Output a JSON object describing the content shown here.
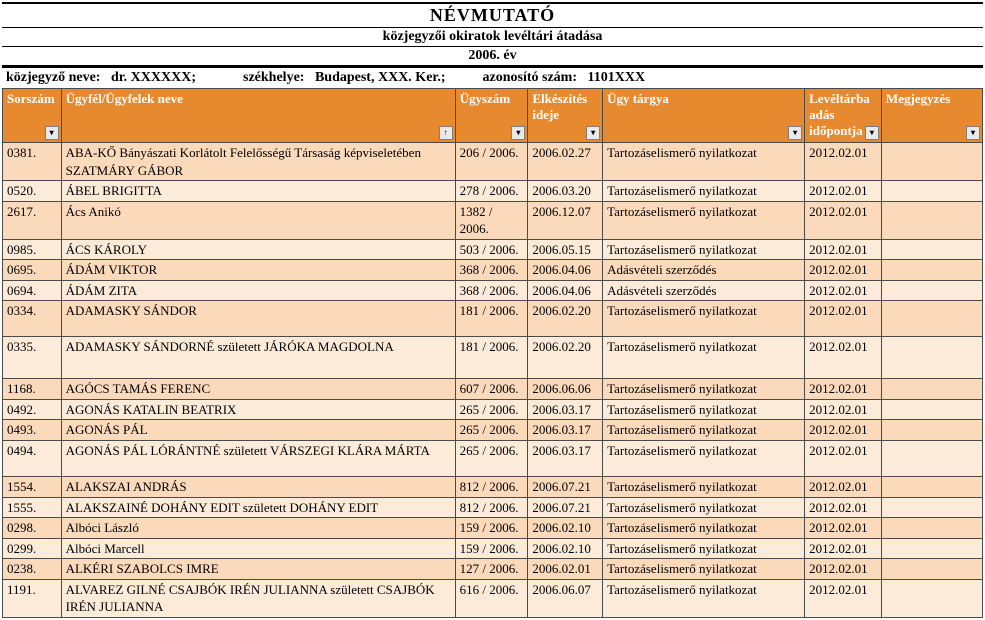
{
  "title": "NÉVMUTATÓ",
  "subtitle": "közjegyzői okiratok levéltári átadása",
  "year": "2006. év",
  "meta": {
    "notary_label": "közjegyző neve:",
    "notary_value": "dr. XXXXXX;",
    "seat_label": "székhelye:",
    "seat_value": "Budapest, XXX. Ker.;",
    "id_label": "azonosító szám:",
    "id_value": "1101XXX"
  },
  "columns": {
    "sorszam": "Sorszám",
    "ugyfel": "Ügyfél/Ügyfelek neve",
    "ugyszam": "Ügyszám",
    "elkeszites": "Elkészítés ideje",
    "targy": "Ügy tárgya",
    "leveltar": "Levéltárba adás időpontja",
    "megjegyzes": "Megjegyzés"
  },
  "rows": [
    {
      "sorszam": "0381.",
      "nev": "ABA-KŐ Bányászati Korlátolt Felelősségű Társaság képviseletében SZATMÁRY GÁBOR",
      "ugy": "206 / 2006.",
      "ido": "2006.02.27",
      "targy": "Tartozáselismerő nyilatkozat",
      "lev": "2012.02.01",
      "megj": ""
    },
    {
      "sorszam": "0520.",
      "nev": "ÁBEL BRIGITTA",
      "ugy": "278 / 2006.",
      "ido": "2006.03.20",
      "targy": "Tartozáselismerő nyilatkozat",
      "lev": "2012.02.01",
      "megj": ""
    },
    {
      "sorszam": "2617.",
      "nev": "Ács Anikó",
      "ugy": "1382 / 2006.",
      "ido": "2006.12.07",
      "targy": "Tartozáselismerő nyilatkozat",
      "lev": "2012.02.01",
      "megj": ""
    },
    {
      "sorszam": "0985.",
      "nev": "ÁCS KÁROLY",
      "ugy": "503 / 2006.",
      "ido": "2006.05.15",
      "targy": "Tartozáselismerő nyilatkozat",
      "lev": "2012.02.01",
      "megj": ""
    },
    {
      "sorszam": "0695.",
      "nev": "ÁDÁM VIKTOR",
      "ugy": "368 / 2006.",
      "ido": "2006.04.06",
      "targy": "Adásvételi szerződés",
      "lev": "2012.02.01",
      "megj": ""
    },
    {
      "sorszam": "0694.",
      "nev": "ÁDÁM ZITA",
      "ugy": "368 / 2006.",
      "ido": "2006.04.06",
      "targy": "Adásvételi szerződés",
      "lev": "2012.02.01",
      "megj": ""
    },
    {
      "sorszam": "0334.",
      "nev": "ADAMASKY SÁNDOR",
      "ugy": "181 / 2006.",
      "ido": "2006.02.20",
      "targy": "Tartozáselismerő nyilatkozat",
      "lev": "2012.02.01",
      "megj": ""
    },
    {
      "sorszam": "0335.",
      "nev": "ADAMASKY SÁNDORNÉ született JÁRÓKA MAGDOLNA",
      "ugy": "181 / 2006.",
      "ido": "2006.02.20",
      "targy": "Tartozáselismerő nyilatkozat",
      "lev": "2012.02.01",
      "megj": ""
    },
    {
      "sorszam": "1168.",
      "nev": "AGÓCS TAMÁS FERENC",
      "ugy": "607 / 2006.",
      "ido": "2006.06.06",
      "targy": "Tartozáselismerő nyilatkozat",
      "lev": "2012.02.01",
      "megj": ""
    },
    {
      "sorszam": "0492.",
      "nev": "AGONÁS KATALIN  BEATRIX",
      "ugy": "265 / 2006.",
      "ido": "2006.03.17",
      "targy": "Tartozáselismerő nyilatkozat",
      "lev": "2012.02.01",
      "megj": ""
    },
    {
      "sorszam": "0493.",
      "nev": "AGONÁS PÁL",
      "ugy": "265 / 2006.",
      "ido": "2006.03.17",
      "targy": "Tartozáselismerő nyilatkozat",
      "lev": "2012.02.01",
      "megj": ""
    },
    {
      "sorszam": "0494.",
      "nev": "AGONÁS PÁL LÓRÁNTNÉ született VÁRSZEGI KLÁRA MÁRTA",
      "ugy": "265 / 2006.",
      "ido": "2006.03.17",
      "targy": "Tartozáselismerő nyilatkozat",
      "lev": "2012.02.01",
      "megj": ""
    },
    {
      "sorszam": "1554.",
      "nev": "ALAKSZAI ANDRÁS",
      "ugy": "812 / 2006.",
      "ido": "2006.07.21",
      "targy": "Tartozáselismerő nyilatkozat",
      "lev": "2012.02.01",
      "megj": ""
    },
    {
      "sorszam": "1555.",
      "nev": "ALAKSZAINÉ DOHÁNY EDIT született DOHÁNY EDIT",
      "ugy": "812 / 2006.",
      "ido": "2006.07.21",
      "targy": "Tartozáselismerő nyilatkozat",
      "lev": "2012.02.01",
      "megj": ""
    },
    {
      "sorszam": "0298.",
      "nev": "Albóci László",
      "ugy": "159 / 2006.",
      "ido": "2006.02.10",
      "targy": "Tartozáselismerő nyilatkozat",
      "lev": "2012.02.01",
      "megj": ""
    },
    {
      "sorszam": "0299.",
      "nev": "Albóci Marcell",
      "ugy": "159 / 2006.",
      "ido": "2006.02.10",
      "targy": "Tartozáselismerő nyilatkozat",
      "lev": "2012.02.01",
      "megj": ""
    },
    {
      "sorszam": "0238.",
      "nev": "ALKÉRI SZABOLCS IMRE",
      "ugy": "127 / 2006.",
      "ido": "2006.02.01",
      "targy": "Tartozáselismerő nyilatkozat",
      "lev": "2012.02.01",
      "megj": ""
    },
    {
      "sorszam": "1191.",
      "nev": "ALVAREZ GILNÉ CSAJBÓK IRÉN JULIANNA született CSAJBÓK IRÉN JULIANNA",
      "ugy": "616 / 2006.",
      "ido": "2006.06.07",
      "targy": "Tartozáselismerő nyilatkozat",
      "lev": "2012.02.01",
      "megj": ""
    }
  ],
  "tall_rows": [
    0,
    6,
    7,
    11,
    17
  ],
  "taller_rows": [
    7
  ]
}
